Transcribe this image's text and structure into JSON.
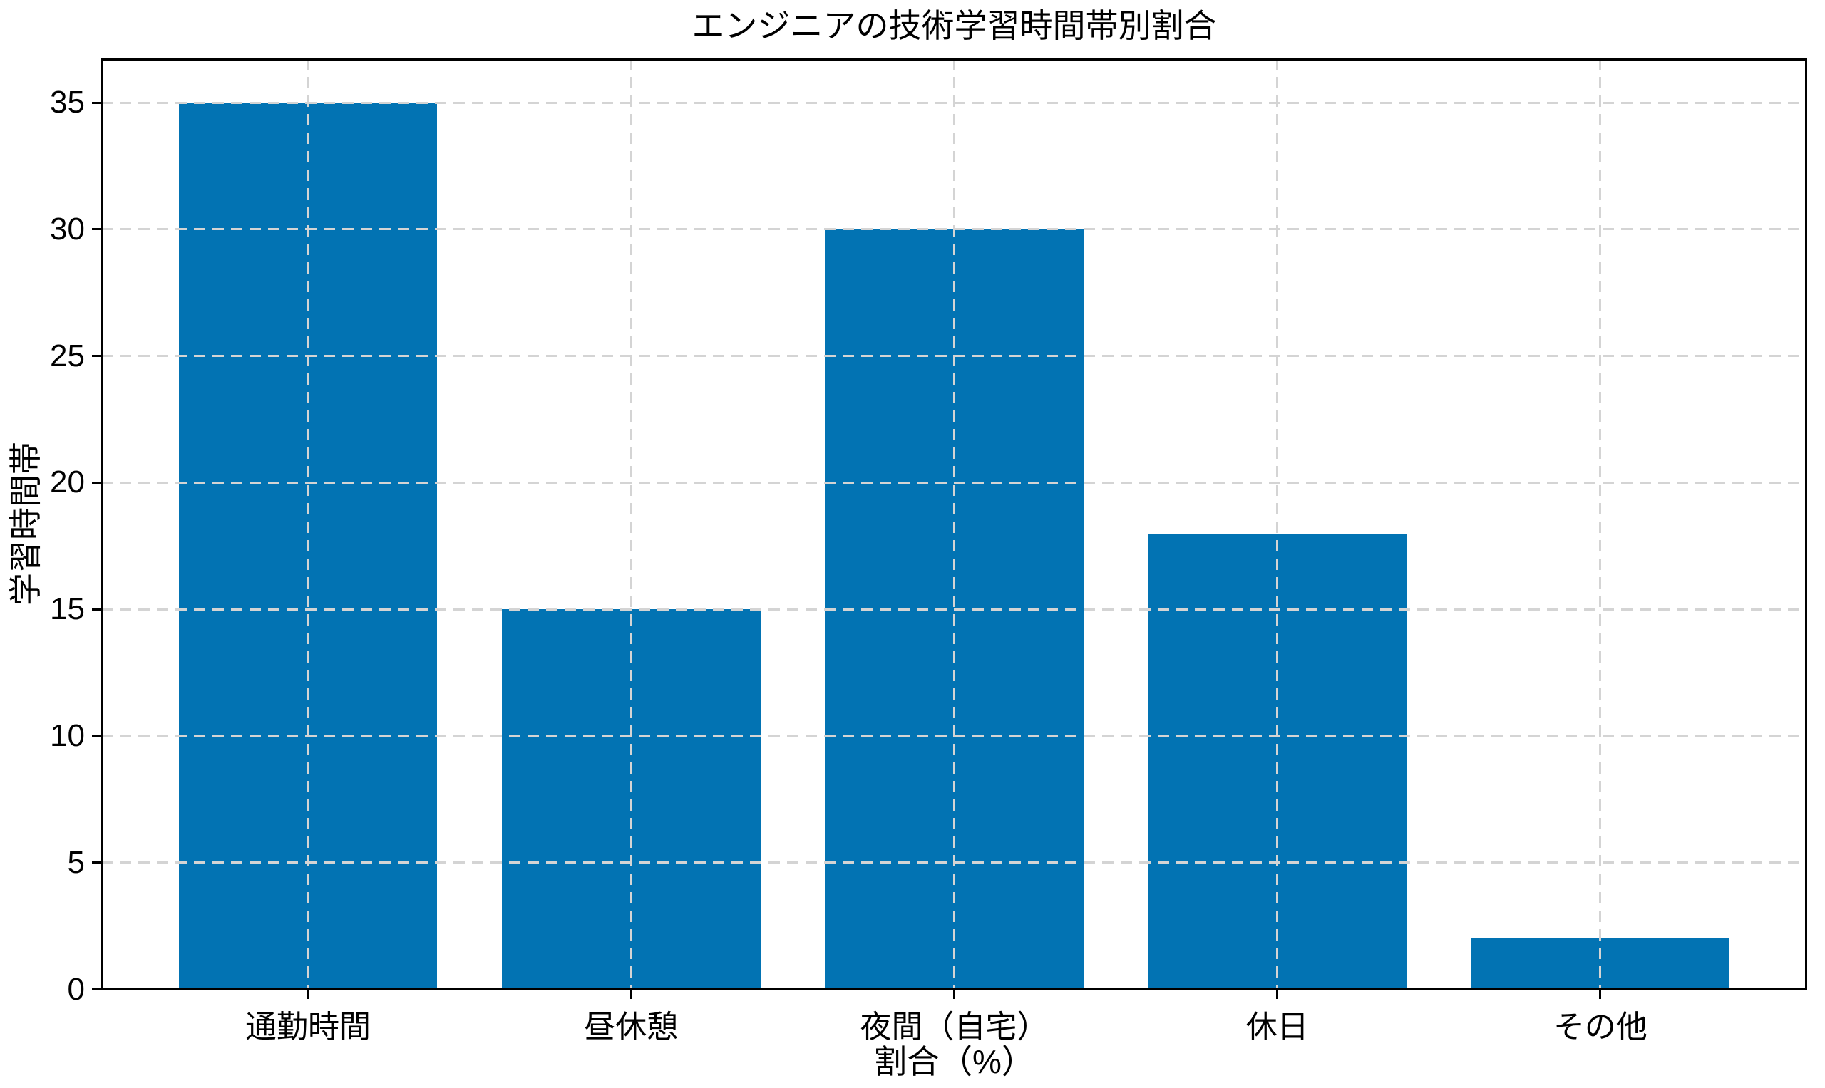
{
  "chart_data": {
    "type": "bar",
    "title": "エンジニアの技術学習時間帯別割合",
    "categories": [
      "通勤時間",
      "昼休憩",
      "夜間（自宅）",
      "休日",
      "その他"
    ],
    "values": [
      35,
      15,
      30,
      18,
      2
    ],
    "xlabel": "割合（%）",
    "ylabel": "学習時間帯",
    "yticks": [
      0,
      5,
      10,
      15,
      20,
      25,
      30,
      35
    ],
    "ylim": [
      0,
      36.75
    ],
    "xlim": [
      -0.64,
      4.64
    ],
    "bar_width_ratio": 0.8,
    "bar_color": "#0273b3",
    "grid": {
      "on": true,
      "axis": "both",
      "style": "dashed",
      "color": "#d4d4d4",
      "above_bars": true
    },
    "background_color": "#ffffff",
    "spine_color": "#000000",
    "text_color": "#000000",
    "legend": null
  }
}
